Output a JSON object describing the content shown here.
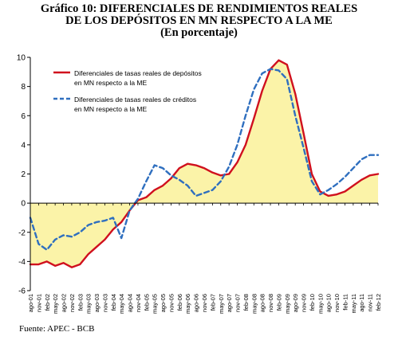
{
  "chart_data": {
    "type": "line",
    "title": "Gráfico 10: DIFERENCIALES DE RENDIMIENTOS REALES",
    "title2": "DE LOS DEPÓSITOS EN MN RESPECTO A LA ME",
    "subtitle": "(En porcentaje)",
    "source": "Fuente: APEC - BCB",
    "ylim": [
      -6,
      10
    ],
    "yticks": [
      10,
      8,
      6,
      4,
      2,
      0,
      -2,
      -4,
      -6
    ],
    "legend_position": "top-left",
    "grid": false,
    "x": [
      "ago-01",
      "nov-01",
      "feb-02",
      "may-02",
      "ago-02",
      "nov-02",
      "feb-03",
      "may-03",
      "ago-03",
      "nov-03",
      "feb-04",
      "may-04",
      "ago-04",
      "nov-04",
      "feb-05",
      "may-05",
      "ago-05",
      "nov-05",
      "feb-06",
      "may-06",
      "ago-06",
      "nov-06",
      "feb-07",
      "may-07",
      "ago-07",
      "nov-07",
      "feb-08",
      "may-08",
      "ago-08",
      "nov-08",
      "feb-09",
      "may-09",
      "ago-09",
      "nov-09",
      "feb-10",
      "may-10",
      "ago-10",
      "nov-10",
      "feb-11",
      "may-11",
      "ago-11",
      "nov-11",
      "feb-12"
    ],
    "series": [
      {
        "name": "Diferenciales de tasas reales de depósitos en MN respecto a la ME",
        "color": "#d0101e",
        "style": "solid",
        "fill": "#fbf3a8",
        "values": [
          -4.2,
          -4.2,
          -4.0,
          -4.3,
          -4.1,
          -4.4,
          -4.2,
          -3.5,
          -3.0,
          -2.5,
          -1.8,
          -1.3,
          -0.5,
          0.2,
          0.4,
          0.9,
          1.2,
          1.7,
          2.4,
          2.7,
          2.6,
          2.4,
          2.1,
          1.9,
          2.0,
          2.8,
          4.0,
          5.8,
          7.7,
          9.2,
          9.8,
          9.5,
          7.5,
          4.8,
          2.0,
          0.8,
          0.5,
          0.6,
          0.8,
          1.2,
          1.6,
          1.9,
          2.0
        ]
      },
      {
        "name": "Diferenciales de tasas reales de créditos en MN respecto a la ME",
        "color": "#2f6fbf",
        "style": "dashed",
        "values": [
          -1.0,
          -2.8,
          -3.2,
          -2.5,
          -2.2,
          -2.3,
          -2.0,
          -1.5,
          -1.3,
          -1.2,
          -1.0,
          -2.4,
          -0.5,
          0.3,
          1.5,
          2.6,
          2.4,
          1.9,
          1.6,
          1.2,
          0.5,
          0.7,
          0.9,
          1.5,
          2.5,
          4.0,
          6.0,
          7.8,
          8.9,
          9.2,
          9.1,
          8.5,
          6.0,
          3.8,
          1.5,
          0.6,
          0.9,
          1.3,
          1.8,
          2.4,
          3.0,
          3.3,
          3.3
        ]
      }
    ]
  }
}
